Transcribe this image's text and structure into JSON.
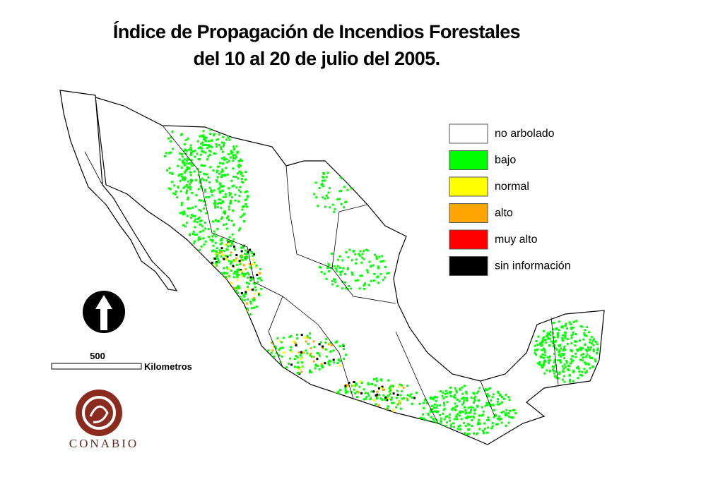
{
  "title": [
    "Índice de Propagación de Incendios Forestales",
    "del 10 al 20 de julio del 2005."
  ],
  "legend": [
    {
      "label": "no arbolado",
      "color": "#ffffff"
    },
    {
      "label": "bajo",
      "color": "#00ff00"
    },
    {
      "label": "normal",
      "color": "#ffff00"
    },
    {
      "label": "alto",
      "color": "#ffa500"
    },
    {
      "label": "muy alto",
      "color": "#ff0000"
    },
    {
      "label": "sin información",
      "color": "#000000"
    }
  ],
  "scale_bar": {
    "value": 500,
    "unit": "Kilometros"
  },
  "logo": "CONABIO"
}
